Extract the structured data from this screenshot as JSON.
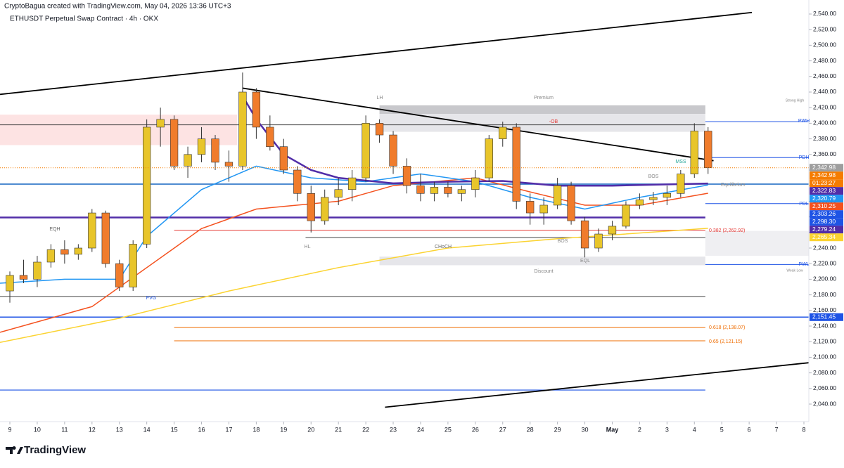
{
  "header": {
    "credit": "CryptoBagua created with TradingView.com, May 04, 2026 13:36 UTC+3",
    "symbol": "ETHUSDT Perpetual Swap Contract · 4h · OKX"
  },
  "footer": {
    "logo": "TradingView"
  },
  "chart_data": {
    "type": "candlestick",
    "xlim": [
      -0.36,
      29.18
    ],
    "ylim": [
      2017.5,
      2558
    ],
    "xticks": [
      {
        "value": 0,
        "label": "9"
      },
      {
        "value": 1,
        "label": "10"
      },
      {
        "value": 2,
        "label": "11"
      },
      {
        "value": 3,
        "label": "12"
      },
      {
        "value": 4,
        "label": "13"
      },
      {
        "value": 5,
        "label": "14"
      },
      {
        "value": 6,
        "label": "15"
      },
      {
        "value": 7,
        "label": "16"
      },
      {
        "value": 8,
        "label": "17"
      },
      {
        "value": 9,
        "label": "18"
      },
      {
        "value": 10,
        "label": "19"
      },
      {
        "value": 11,
        "label": "20"
      },
      {
        "value": 12,
        "label": "21"
      },
      {
        "value": 13,
        "label": "22"
      },
      {
        "value": 14,
        "label": "23"
      },
      {
        "value": 15,
        "label": "24"
      },
      {
        "value": 16,
        "label": "25"
      },
      {
        "value": 17,
        "label": "26"
      },
      {
        "value": 18,
        "label": "27"
      },
      {
        "value": 19,
        "label": "28"
      },
      {
        "value": 20,
        "label": "29"
      },
      {
        "value": 21,
        "label": "30"
      },
      {
        "value": 22,
        "label": "May"
      },
      {
        "value": 23,
        "label": "2"
      },
      {
        "value": 24,
        "label": "3"
      },
      {
        "value": 25,
        "label": "4"
      },
      {
        "value": 26,
        "label": "5"
      },
      {
        "value": 27,
        "label": "6"
      },
      {
        "value": 28,
        "label": "7"
      },
      {
        "value": 29,
        "label": "8"
      }
    ],
    "yticks": [
      {
        "value": 2040,
        "label": "2,040.00"
      },
      {
        "value": 2060,
        "label": "2,060.00"
      },
      {
        "value": 2080,
        "label": "2,080.00"
      },
      {
        "value": 2100,
        "label": "2,100.00"
      },
      {
        "value": 2120,
        "label": "2,120.00"
      },
      {
        "value": 2140,
        "label": "2,140.00"
      },
      {
        "value": 2160,
        "label": "2,160.00"
      },
      {
        "value": 2180,
        "label": "2,180.00"
      },
      {
        "value": 2200,
        "label": "2,200.00"
      },
      {
        "value": 2220,
        "label": "2,220.00"
      },
      {
        "value": 2240,
        "label": "2,240.00"
      },
      {
        "value": 2260,
        "label": "2,260.00"
      },
      {
        "value": 2280,
        "label": "2,280.00"
      },
      {
        "value": 2300,
        "label": "2,300.00"
      },
      {
        "value": 2320,
        "label": "2,320.00"
      },
      {
        "value": 2340,
        "label": "2,340.00"
      },
      {
        "value": 2360,
        "label": "2,360.00"
      },
      {
        "value": 2380,
        "label": "2,380.00"
      },
      {
        "value": 2400,
        "label": "2,400.00"
      },
      {
        "value": 2420,
        "label": "2,420.00"
      },
      {
        "value": 2440,
        "label": "2,440.00"
      },
      {
        "value": 2460,
        "label": "2,460.00"
      },
      {
        "value": 2480,
        "label": "2,480.00"
      },
      {
        "value": 2500,
        "label": "2,500.00"
      },
      {
        "value": 2520,
        "label": "2,520.00"
      },
      {
        "value": 2540,
        "label": "2,540.00"
      }
    ],
    "up_color": "#e8c52a",
    "down_color": "#f07c2c",
    "x": [
      0,
      0.5,
      1,
      1.5,
      2,
      2.5,
      3,
      3.5,
      4,
      4.5,
      5,
      5.5,
      6,
      6.5,
      7,
      7.5,
      8,
      8.5,
      9,
      9.5,
      10,
      10.5,
      11,
      11.5,
      12,
      12.5,
      13,
      13.5,
      14,
      14.5,
      15,
      15.5,
      16,
      16.5,
      17,
      17.5,
      18,
      18.5,
      19,
      19.5,
      20,
      20.5,
      21,
      21.5,
      22,
      22.5,
      23,
      23.5,
      24,
      24.5,
      25,
      25.5
    ],
    "open": [
      2185,
      2205,
      2200,
      2222,
      2238,
      2232,
      2240,
      2285,
      2220,
      2190,
      2245,
      2395,
      2405,
      2345,
      2360,
      2380,
      2350,
      2345,
      2440,
      2395,
      2370,
      2340,
      2310,
      2275,
      2305,
      2315,
      2330,
      2400,
      2385,
      2345,
      2320,
      2310,
      2318,
      2310,
      2315,
      2330,
      2380,
      2395,
      2300,
      2285,
      2295,
      2320,
      2275,
      2240,
      2258,
      2268,
      2295,
      2302,
      2305,
      2310,
      2335,
      2390
    ],
    "high": [
      2210,
      2225,
      2230,
      2245,
      2250,
      2245,
      2290,
      2288,
      2225,
      2250,
      2405,
      2420,
      2410,
      2370,
      2395,
      2385,
      2365,
      2465,
      2445,
      2410,
      2380,
      2345,
      2320,
      2315,
      2330,
      2340,
      2410,
      2405,
      2390,
      2355,
      2335,
      2325,
      2325,
      2320,
      2340,
      2385,
      2402,
      2400,
      2310,
      2305,
      2330,
      2325,
      2280,
      2265,
      2275,
      2300,
      2310,
      2312,
      2320,
      2340,
      2400,
      2395
    ],
    "low": [
      2170,
      2195,
      2190,
      2215,
      2220,
      2225,
      2235,
      2215,
      2185,
      2185,
      2240,
      2370,
      2340,
      2330,
      2350,
      2340,
      2325,
      2340,
      2380,
      2365,
      2335,
      2300,
      2260,
      2270,
      2295,
      2300,
      2325,
      2375,
      2335,
      2310,
      2300,
      2300,
      2305,
      2300,
      2305,
      2325,
      2370,
      2290,
      2270,
      2270,
      2290,
      2270,
      2228,
      2235,
      2250,
      2265,
      2290,
      2295,
      2295,
      2305,
      2330,
      2335
    ],
    "close": [
      2205,
      2200,
      2222,
      2238,
      2232,
      2240,
      2285,
      2220,
      2190,
      2245,
      2395,
      2405,
      2345,
      2360,
      2380,
      2350,
      2345,
      2440,
      2395,
      2370,
      2340,
      2310,
      2275,
      2305,
      2315,
      2330,
      2400,
      2385,
      2345,
      2320,
      2310,
      2318,
      2310,
      2315,
      2330,
      2380,
      2395,
      2300,
      2285,
      2295,
      2320,
      2275,
      2240,
      2258,
      2268,
      2295,
      2302,
      2305,
      2310,
      2335,
      2390,
      2342.98
    ],
    "lines": [
      {
        "color": "#fbd331",
        "width": 1.5,
        "x": [
          -0.36,
          4,
          8,
          12,
          16,
          20,
          25.5
        ],
        "values": [
          2119,
          2150,
          2185,
          2215,
          2240,
          2252,
          2265.34
        ]
      },
      {
        "color": "#f4511e",
        "width": 1.5,
        "x": [
          -0.36,
          3,
          5,
          7,
          9,
          12,
          14,
          17,
          19,
          21,
          23,
          25.5
        ],
        "values": [
          2132,
          2165,
          2215,
          2265,
          2290,
          2300,
          2320,
          2330,
          2312,
          2295,
          2295,
          2310.25
        ]
      },
      {
        "color": "#2196f3",
        "width": 1.5,
        "x": [
          -0.36,
          2,
          4,
          5,
          7,
          9,
          11,
          13,
          15,
          17,
          19,
          21,
          23,
          25.5
        ],
        "values": [
          2195,
          2200,
          2200,
          2255,
          2315,
          2345,
          2330,
          2325,
          2335,
          2325,
          2305,
          2290,
          2305,
          2320.79
        ]
      },
      {
        "color": "#512da8",
        "width": 2.5,
        "x": [
          8.5,
          9,
          10,
          11,
          12,
          14,
          16,
          18,
          20,
          22,
          25.5
        ],
        "values": [
          2435,
          2405,
          2360,
          2340,
          2330,
          2323,
          2325,
          2326,
          2320,
          2320,
          2322.83
        ]
      }
    ],
    "trendlines": [
      {
        "x": [
          -0.36,
          27.1
        ],
        "values": [
          2437,
          2542
        ]
      },
      {
        "x": [
          8.5,
          25.7
        ],
        "values": [
          2445,
          2352
        ]
      },
      {
        "x": [
          13.7,
          29.18
        ],
        "values": [
          2036,
          2093
        ]
      }
    ],
    "zones": [
      {
        "x": [
          -0.36,
          8.3
        ],
        "values": [
          2372,
          2411
        ],
        "color": "#fde3e3"
      },
      {
        "x": [
          13.5,
          25.4
        ],
        "values": [
          2412,
          2423
        ],
        "color": "#c8c8cc"
      },
      {
        "x": [
          13.5,
          25.4
        ],
        "values": [
          2389,
          2412
        ],
        "color": "#e6e6ea"
      },
      {
        "x": [
          13.5,
          25.4
        ],
        "values": [
          2218,
          2229
        ],
        "color": "#e6e6ea"
      },
      {
        "x": [
          25.4,
          29.18
        ],
        "values": [
          2230,
          2262
        ],
        "color": "#efeff2"
      }
    ],
    "levels": [
      {
        "value": 2398,
        "x": [
          -0.36,
          25.4
        ],
        "color": "#444",
        "width": 1
      },
      {
        "value": 2178,
        "x": [
          -0.36,
          25.4
        ],
        "color": "#444",
        "width": 1
      },
      {
        "value": 2253.5,
        "x": [
          10.8,
          25.4
        ],
        "color": "#444",
        "width": 1
      },
      {
        "value": 2322,
        "x": [
          -0.36,
          29.18
        ],
        "color": "#1565c0",
        "width": 1.5
      },
      {
        "value": 2151.45,
        "x": [
          -0.36,
          29.18
        ],
        "color": "#1e53e5",
        "width": 1.5
      },
      {
        "value": 2058,
        "x": [
          -0.36,
          25.4
        ],
        "color": "#1e53e5",
        "width": 1.2
      },
      {
        "value": 2279.24,
        "x": [
          -0.36,
          25.4
        ],
        "color": "#512da8",
        "width": 2.5
      },
      {
        "value": 2262.92,
        "x": [
          6,
          25.4
        ],
        "color": "#e53935",
        "width": 1
      },
      {
        "value": 2138.07,
        "x": [
          6,
          25.4
        ],
        "color": "#ef6c00",
        "width": 1
      },
      {
        "value": 2121.15,
        "x": [
          6,
          25.4
        ],
        "color": "#ef6c00",
        "width": 1
      },
      {
        "value": 2402,
        "x": [
          25.4,
          29.18
        ],
        "color": "#1e53e5",
        "width": 1
      },
      {
        "value": 2356,
        "x": [
          25.4,
          29.18
        ],
        "color": "#1e53e5",
        "width": 1
      },
      {
        "value": 2297,
        "x": [
          25.4,
          29.18
        ],
        "color": "#1e53e5",
        "width": 1
      },
      {
        "value": 2219,
        "x": [
          25.4,
          29.18
        ],
        "color": "#1e53e5",
        "width": 1
      }
    ],
    "price_labels": [
      {
        "value": 2342.98,
        "color": "#9e9e9e"
      },
      {
        "value": 2342.98,
        "color": "#f57c00",
        "countdown": "01:23:27"
      },
      {
        "value": 2322.83,
        "color": "#512da8"
      },
      {
        "value": 2320.79,
        "color": "#2196f3"
      },
      {
        "value": 2310.25,
        "color": "#f4511e"
      },
      {
        "value": 2303.26,
        "color": "#1e53e5"
      },
      {
        "value": 2298.3,
        "color": "#1e53e5"
      },
      {
        "value": 2279.24,
        "color": "#512da8"
      },
      {
        "value": 2265.34,
        "color": "#fbd331"
      },
      {
        "value": 2151.45,
        "color": "#1e53e5"
      }
    ],
    "price_label_texts": [
      "2,342.98",
      "2,342.98",
      "2,322.83",
      "2,320.79",
      "2,310.25",
      "2,303.26",
      "2,298.30",
      "2,279.24",
      "2,265.34",
      "2,151.45"
    ],
    "annotations": [
      "LH",
      "Premium",
      "Strong High",
      "PWH",
      "-OB",
      "PDH",
      "MSS",
      "BOS",
      "Equilibrium",
      "PDL",
      "0.382 (2,262.92)",
      "BOS",
      "CHoCH",
      "HL",
      "EQL",
      "PWL",
      "Weak Low",
      "Discount",
      "EQH",
      "FVG",
      "0.618 (2,138.07)",
      "0.65 (2,121.15)"
    ]
  }
}
